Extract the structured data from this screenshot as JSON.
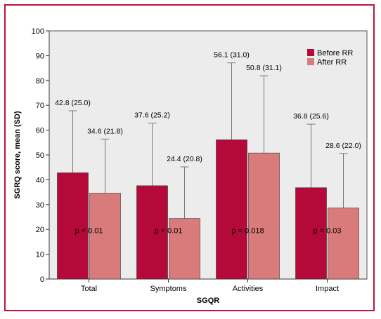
{
  "chart_data": {
    "type": "bar",
    "title": "",
    "xlabel": "SGQR",
    "ylabel": "SGRQ score, mean (SD)",
    "ylim": [
      0,
      100
    ],
    "yticks": [
      0,
      10,
      20,
      30,
      40,
      50,
      60,
      70,
      80,
      90,
      100
    ],
    "categories": [
      "Total",
      "Symptoms",
      "Activities",
      "Impact"
    ],
    "series": [
      {
        "name": "Before RR",
        "color": "#b5093a",
        "values": [
          42.8,
          37.6,
          56.1,
          36.8
        ],
        "sd": [
          25.0,
          25.2,
          31.0,
          25.6
        ],
        "labels": [
          "42.8 (25.0)",
          "37.6 (25.2)",
          "56.1 (31.0)",
          "36.8 (25.6)"
        ]
      },
      {
        "name": "After RR",
        "color": "#d97b7b",
        "values": [
          34.6,
          24.4,
          50.8,
          28.6
        ],
        "sd": [
          21.8,
          20.8,
          31.1,
          22.0
        ],
        "labels": [
          "34.6 (21.8)",
          "24.4 (20.8)",
          "50.8 (31.1)",
          "28.6 (22.0)"
        ]
      }
    ],
    "p_values": [
      "p < 0.01",
      "p < 0.01",
      "p = 0.018",
      "p = 0.03"
    ],
    "legend": "top-right",
    "grid": false,
    "background": "#ececec"
  }
}
